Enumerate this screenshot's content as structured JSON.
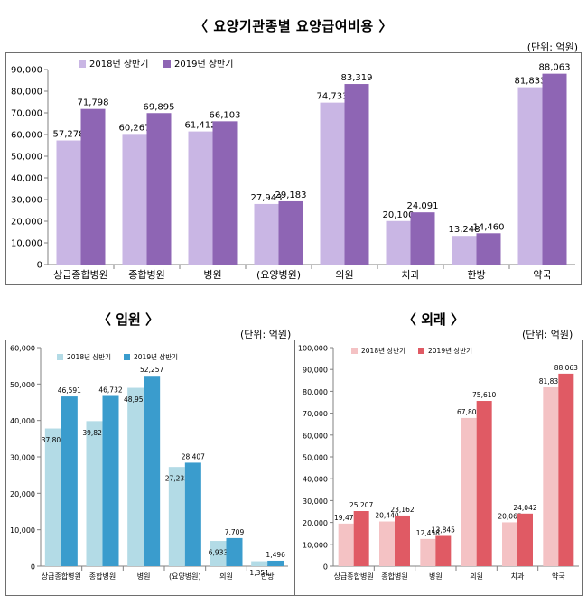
{
  "page": {
    "main_title": "〈 요양기관종별 요양급여비용 〉",
    "inpatient_title": "〈 입원 〉",
    "outpatient_title": "〈 외래 〉",
    "unit_label": "(단위: 억원)"
  },
  "colors": {
    "main_2018": "#c9b6e4",
    "main_2019": "#8e65b4",
    "inp_2018": "#b3dbe6",
    "inp_2019": "#3a9ccd",
    "out_2018": "#f4c2c4",
    "out_2019": "#e05a64"
  },
  "chart_data": [
    {
      "type": "bar",
      "title": "요양기관종별 요양급여비용",
      "unit": "(단위: 억원)",
      "categories": [
        "상급종합병원",
        "종합병원",
        "병원",
        "(요양병원)",
        "의원",
        "치과",
        "한방",
        "약국"
      ],
      "series": [
        {
          "name": "2018년 상반기",
          "values": [
            57278,
            60267,
            61412,
            27943,
            74733,
            20100,
            13248,
            81833
          ],
          "labels": [
            "57,278",
            "60,267",
            "61,412",
            "27,943",
            "74,733",
            "20,100",
            "13,248",
            "81,833"
          ]
        },
        {
          "name": "2019년 상반기",
          "values": [
            71798,
            69895,
            66103,
            29183,
            83319,
            24091,
            14460,
            88063
          ],
          "labels": [
            "71,798",
            "69,895",
            "66,103",
            "29,183",
            "83,319",
            "24,091",
            "14,460",
            "88,063"
          ]
        }
      ],
      "ylim": [
        0,
        90000
      ],
      "yticks": [
        0,
        10000,
        20000,
        30000,
        40000,
        50000,
        60000,
        70000,
        80000,
        90000
      ],
      "ytick_labels": [
        "0",
        "10,000",
        "20,000",
        "30,000",
        "40,000",
        "50,000",
        "60,000",
        "70,000",
        "80,000",
        "90,000"
      ],
      "legend_position": "top-left",
      "grid": false
    },
    {
      "type": "bar",
      "title": "입원",
      "unit": "(단위: 억원)",
      "categories": [
        "상급종합병원",
        "종합병원",
        "병원",
        "(요양병원)",
        "의원",
        "한방"
      ],
      "series": [
        {
          "name": "2018년 상반기",
          "values": [
            37801,
            39827,
            48955,
            27233,
            6933,
            1351
          ],
          "labels": [
            "37,801",
            "39,827",
            "48,955",
            "27,233",
            "6,933",
            "1,351"
          ]
        },
        {
          "name": "2019년 상반기",
          "values": [
            46591,
            46732,
            52257,
            28407,
            7709,
            1496
          ],
          "labels": [
            "46,591",
            "46,732",
            "52,257",
            "28,407",
            "7,709",
            "1,496"
          ]
        }
      ],
      "ylim": [
        0,
        60000
      ],
      "yticks": [
        0,
        10000,
        20000,
        30000,
        40000,
        50000,
        60000
      ],
      "ytick_labels": [
        "0",
        "10,000",
        "20,000",
        "30,000",
        "40,000",
        "50,000",
        "60,000"
      ],
      "legend_position": "top-left",
      "grid": false
    },
    {
      "type": "bar",
      "title": "외래",
      "unit": "(단위: 억원)",
      "categories": [
        "상급종합병원",
        "종합병원",
        "병원",
        "의원",
        "치과",
        "약국"
      ],
      "series": [
        {
          "name": "2018년 상반기",
          "values": [
            19477,
            20440,
            12458,
            67800,
            20065,
            81833
          ],
          "labels": [
            "19,477",
            "20,440",
            "12,458",
            "67,800",
            "20,065",
            "81,833"
          ]
        },
        {
          "name": "2019년 상반기",
          "values": [
            25207,
            23162,
            13845,
            75610,
            24042,
            88063
          ],
          "labels": [
            "25,207",
            "23,162",
            "13,845",
            "75,610",
            "24,042",
            "88,063"
          ]
        }
      ],
      "ylim": [
        0,
        100000
      ],
      "yticks": [
        0,
        10000,
        20000,
        30000,
        40000,
        50000,
        60000,
        70000,
        80000,
        90000,
        100000
      ],
      "ytick_labels": [
        "0",
        "10,000",
        "20,000",
        "30,000",
        "40,000",
        "50,000",
        "60,000",
        "70,000",
        "80,000",
        "90,000",
        "100,000"
      ],
      "legend_position": "top-left",
      "grid": false
    }
  ]
}
